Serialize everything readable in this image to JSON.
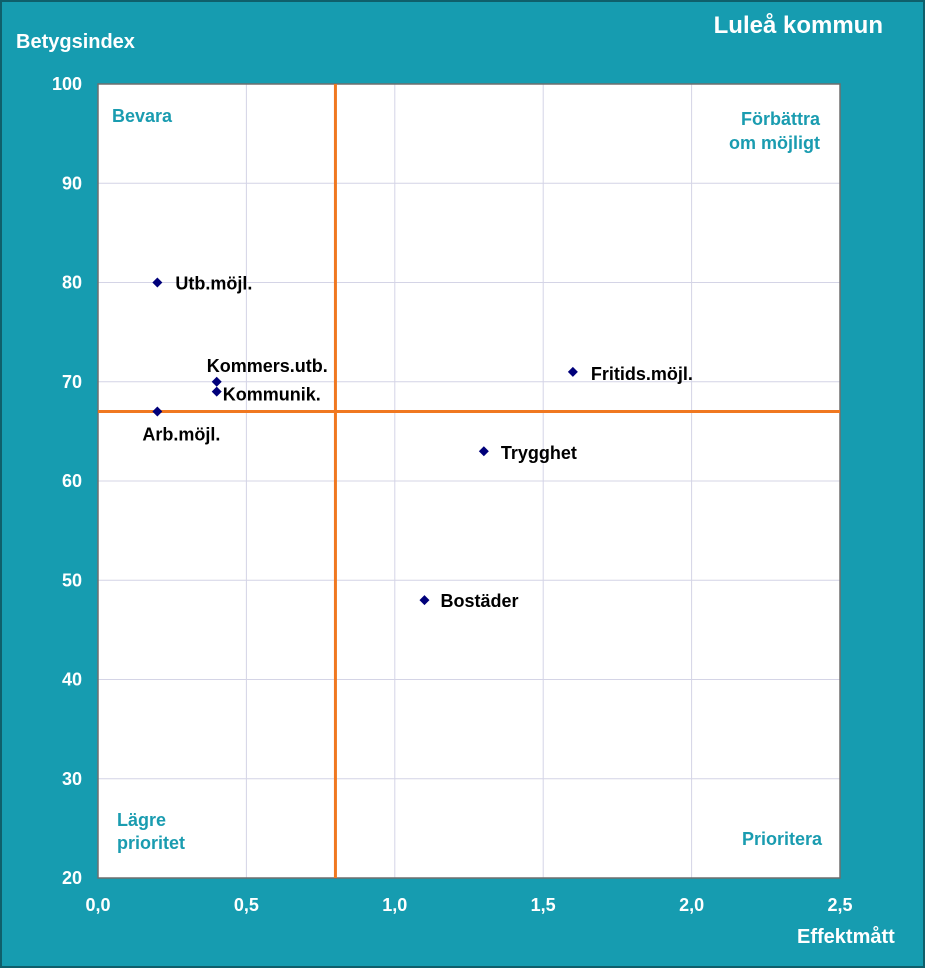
{
  "chart_data": {
    "type": "scatter",
    "title": "Luleå kommun",
    "xlabel": "Effektmått",
    "ylabel": "Betygsindex",
    "xlim": [
      0.0,
      2.5
    ],
    "ylim": [
      20,
      100
    ],
    "x_ticks": [
      "0,0",
      "0,5",
      "1,0",
      "1,5",
      "2,0",
      "2,5"
    ],
    "y_ticks": [
      "20",
      "30",
      "40",
      "50",
      "60",
      "70",
      "80",
      "90",
      "100"
    ],
    "grid": true,
    "reference_lines": {
      "x": 0.8,
      "y": 67
    },
    "quadrant_labels": {
      "top_left": "Bevara",
      "top_right_1": "Förbättra",
      "top_right_2": "om möjligt",
      "bottom_left_1": "Lägre",
      "bottom_left_2": "prioritet",
      "bottom_right": "Prioritera"
    },
    "points": [
      {
        "label": "Utb.möjl.",
        "x": 0.2,
        "y": 80
      },
      {
        "label": "Kommers.utb.",
        "x": 0.4,
        "y": 70
      },
      {
        "label": "Kommunik.",
        "x": 0.4,
        "y": 69
      },
      {
        "label": "Arb.möjl.",
        "x": 0.2,
        "y": 67
      },
      {
        "label": "Fritids.möjl.",
        "x": 1.6,
        "y": 71
      },
      {
        "label": "Trygghet",
        "x": 1.3,
        "y": 63
      },
      {
        "label": "Bostäder",
        "x": 1.1,
        "y": 48
      }
    ],
    "colors": {
      "background": "#169cb0",
      "plot_area": "#ffffff",
      "grid": "#d4d4e6",
      "reference_line": "#f07820",
      "marker": "#00007a",
      "quadrant_text": "#1a9cb0"
    }
  }
}
